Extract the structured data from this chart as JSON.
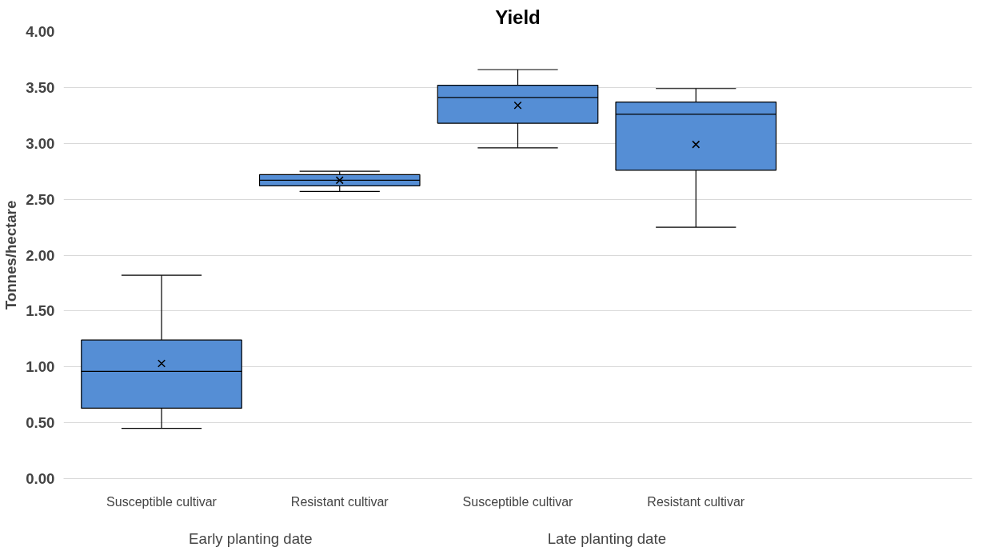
{
  "chart_data": {
    "type": "box",
    "title": "Yield",
    "ylabel": "Tonnes/hectare",
    "categories": [
      "Susceptible cultivar",
      "Resistant cultivar",
      "Susceptible cultivar",
      "Resistant cultivar"
    ],
    "annotations": [
      "Early planting date",
      "Late planting date"
    ],
    "series": [
      {
        "color": "#558ed5",
        "boxes": [
          {
            "low": 0.45,
            "q1": 0.63,
            "median": 0.96,
            "q3": 1.24,
            "high": 1.82,
            "mean": 1.03
          },
          {
            "low": 2.57,
            "q1": 2.62,
            "median": 2.67,
            "q3": 2.72,
            "high": 2.75,
            "mean": 2.67
          },
          {
            "low": 2.96,
            "q1": 3.18,
            "median": 3.41,
            "q3": 3.52,
            "high": 3.66,
            "mean": 3.34
          },
          {
            "low": 2.25,
            "q1": 2.76,
            "median": 3.26,
            "q3": 3.37,
            "high": 3.49,
            "mean": 2.99
          }
        ]
      }
    ],
    "ylim": [
      0,
      4
    ],
    "yticks": [
      {
        "value": 0,
        "label": "0.00"
      },
      {
        "value": 0.5,
        "label": "0.50"
      },
      {
        "value": 1,
        "label": "1.00"
      },
      {
        "value": 1.5,
        "label": "1.50"
      },
      {
        "value": 2,
        "label": "2.00"
      },
      {
        "value": 2.5,
        "label": "2.50"
      },
      {
        "value": 3,
        "label": "3.00"
      },
      {
        "value": 3.5,
        "label": "3.50"
      },
      {
        "value": 4,
        "label": "4.00"
      }
    ],
    "grid": "y",
    "marker": "cross"
  }
}
